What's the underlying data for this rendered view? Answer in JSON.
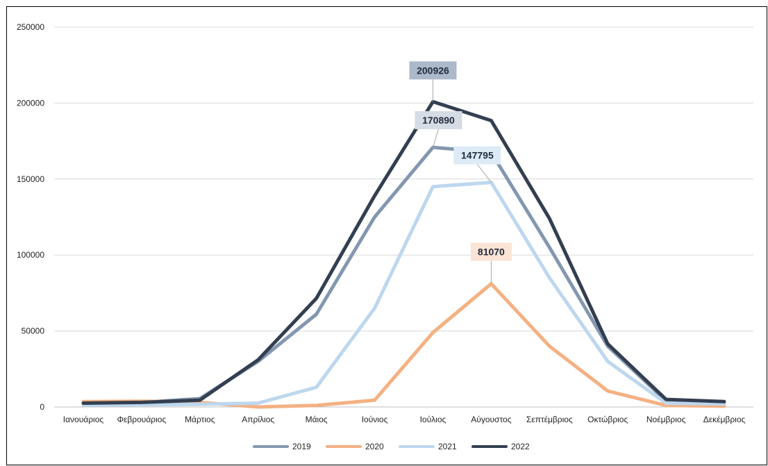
{
  "chart_data": {
    "type": "line",
    "title": "",
    "xlabel": "",
    "ylabel": "",
    "ylim": [
      0,
      250000
    ],
    "yticks": [
      0,
      50000,
      100000,
      150000,
      200000,
      250000
    ],
    "ytick_labels": [
      "0",
      "50000",
      "100000",
      "150000",
      "200000",
      "250000"
    ],
    "grid": true,
    "legend_position": "bottom",
    "categories": [
      "Ιανουάριος",
      "Φεβρουάριος",
      "Μάρτιος",
      "Απρίλιος",
      "Μάιος",
      "Ιούνιος",
      "Ιούλιος",
      "Αύγουστος",
      "Σεπτέμβριος",
      "Οκτώβριος",
      "Νοέμβριος",
      "Δεκέμβριος"
    ],
    "series": [
      {
        "name": "2019",
        "color": "#8497b0",
        "values": [
          2500,
          3000,
          5500,
          30000,
          61000,
          125000,
          170890,
          167500,
          105000,
          40000,
          4000,
          2500
        ]
      },
      {
        "name": "2020",
        "color": "#f4b183",
        "values": [
          3500,
          3800,
          3000,
          0,
          1000,
          4500,
          49000,
          81070,
          40000,
          10500,
          1000,
          500
        ]
      },
      {
        "name": "2021",
        "color": "#bdd7ee",
        "values": [
          1200,
          1500,
          1800,
          2500,
          13000,
          65000,
          145000,
          147795,
          85000,
          30000,
          2500,
          2000
        ]
      },
      {
        "name": "2022",
        "color": "#333f50",
        "values": [
          2500,
          3000,
          4500,
          31000,
          71500,
          139000,
          200926,
          188500,
          124000,
          41500,
          5000,
          3500
        ]
      }
    ],
    "callouts": [
      {
        "series": 3,
        "index": 6,
        "label": "200926",
        "bg": "#acb9ca"
      },
      {
        "series": 0,
        "index": 6,
        "label": "170890",
        "bg": "#d6dce4"
      },
      {
        "series": 2,
        "index": 7,
        "label": "147795",
        "bg": "#ddebf7"
      },
      {
        "series": 1,
        "index": 7,
        "label": "81070",
        "bg": "#fbe4d5"
      }
    ]
  }
}
